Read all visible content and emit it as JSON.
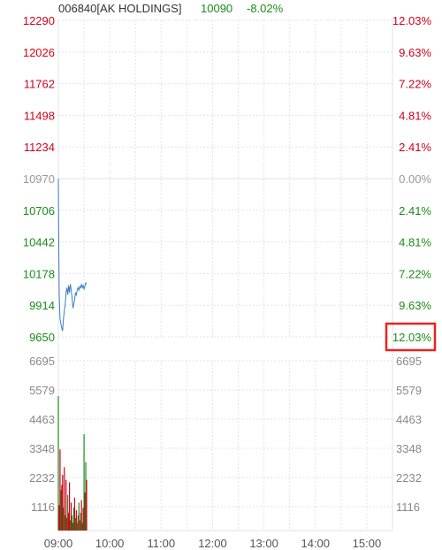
{
  "header": {
    "code_name": "006840[AK HOLDINGS]",
    "price": "10090",
    "change_pct": "-8.02%"
  },
  "colors": {
    "up": "#d0021b",
    "down": "#1a8c1a",
    "neutral": "#999999",
    "line": "#3a7fc1",
    "grid": "#e3e3e3",
    "highlight": "#e8231f",
    "title": "#333333"
  },
  "chart_data": {
    "type": "line",
    "title": "006840[AK HOLDINGS]",
    "price_axis": {
      "ticks": [
        {
          "value": 12290,
          "label": "12290",
          "pct": "12.03%",
          "color": "up"
        },
        {
          "value": 12026,
          "label": "12026",
          "pct": "9.63%",
          "color": "up"
        },
        {
          "value": 11762,
          "label": "11762",
          "pct": "7.22%",
          "color": "up"
        },
        {
          "value": 11498,
          "label": "11498",
          "pct": "4.81%",
          "color": "up"
        },
        {
          "value": 11234,
          "label": "11234",
          "pct": "2.41%",
          "color": "up"
        },
        {
          "value": 10970,
          "label": "10970",
          "pct": "0.00%",
          "color": "neutral"
        },
        {
          "value": 10706,
          "label": "10706",
          "pct": "2.41%",
          "color": "down"
        },
        {
          "value": 10442,
          "label": "10442",
          "pct": "4.81%",
          "color": "down"
        },
        {
          "value": 10178,
          "label": "10178",
          "pct": "7.22%",
          "color": "down"
        },
        {
          "value": 9914,
          "label": "9914",
          "pct": "9.63%",
          "color": "down"
        },
        {
          "value": 9650,
          "label": "9650",
          "pct": "12.03%",
          "color": "down"
        }
      ],
      "ylim": [
        9650,
        12290
      ],
      "highlighted_pct": "12.03%"
    },
    "volume_axis": {
      "ticks": [
        "6695",
        "5579",
        "4463",
        "3348",
        "2232",
        "1116"
      ],
      "ylim": [
        0,
        6695
      ]
    },
    "x_axis": {
      "ticks": [
        "09:00",
        "10:00",
        "11:00",
        "12:00",
        "13:00",
        "14:00",
        "15:00"
      ],
      "range_minutes": [
        0,
        390
      ]
    },
    "price_series": [
      {
        "t": 0,
        "v": 10970
      },
      {
        "t": 0.5,
        "v": 10420
      },
      {
        "t": 1,
        "v": 10000
      },
      {
        "t": 2,
        "v": 9800
      },
      {
        "t": 3,
        "v": 9760
      },
      {
        "t": 4,
        "v": 9720
      },
      {
        "t": 5,
        "v": 9700
      },
      {
        "t": 6,
        "v": 9800
      },
      {
        "t": 7,
        "v": 9870
      },
      {
        "t": 8,
        "v": 9920
      },
      {
        "t": 9,
        "v": 10020
      },
      {
        "t": 10,
        "v": 10060
      },
      {
        "t": 11,
        "v": 10000
      },
      {
        "t": 12,
        "v": 10080
      },
      {
        "t": 13,
        "v": 10020
      },
      {
        "t": 14,
        "v": 10090
      },
      {
        "t": 15,
        "v": 10040
      },
      {
        "t": 16,
        "v": 9980
      },
      {
        "t": 17,
        "v": 9890
      },
      {
        "t": 18,
        "v": 9920
      },
      {
        "t": 19,
        "v": 9960
      },
      {
        "t": 20,
        "v": 10020
      },
      {
        "t": 21,
        "v": 10000
      },
      {
        "t": 22,
        "v": 10040
      },
      {
        "t": 23,
        "v": 10060
      },
      {
        "t": 24,
        "v": 10040
      },
      {
        "t": 25,
        "v": 10070
      },
      {
        "t": 26,
        "v": 10060
      },
      {
        "t": 27,
        "v": 10090
      },
      {
        "t": 28,
        "v": 10060
      },
      {
        "t": 29,
        "v": 10080
      },
      {
        "t": 30,
        "v": 10050
      },
      {
        "t": 31,
        "v": 10070
      },
      {
        "t": 32,
        "v": 10100
      },
      {
        "t": 33,
        "v": 10090
      }
    ],
    "volume_series": [
      {
        "t": 0,
        "v": 5300,
        "dir": "down"
      },
      {
        "t": 1,
        "v": 1000,
        "dir": "up"
      },
      {
        "t": 2,
        "v": 3200,
        "dir": "up"
      },
      {
        "t": 3,
        "v": 1600,
        "dir": "down"
      },
      {
        "t": 4,
        "v": 1800,
        "dir": "up"
      },
      {
        "t": 5,
        "v": 2200,
        "dir": "up"
      },
      {
        "t": 6,
        "v": 900,
        "dir": "down"
      },
      {
        "t": 7,
        "v": 2500,
        "dir": "up"
      },
      {
        "t": 8,
        "v": 600,
        "dir": "down"
      },
      {
        "t": 9,
        "v": 2000,
        "dir": "up"
      },
      {
        "t": 10,
        "v": 500,
        "dir": "up"
      },
      {
        "t": 11,
        "v": 1400,
        "dir": "down"
      },
      {
        "t": 12,
        "v": 700,
        "dir": "up"
      },
      {
        "t": 13,
        "v": 1900,
        "dir": "up"
      },
      {
        "t": 14,
        "v": 400,
        "dir": "down"
      },
      {
        "t": 15,
        "v": 1100,
        "dir": "up"
      },
      {
        "t": 16,
        "v": 600,
        "dir": "down"
      },
      {
        "t": 17,
        "v": 300,
        "dir": "up"
      },
      {
        "t": 18,
        "v": 900,
        "dir": "down"
      },
      {
        "t": 19,
        "v": 1300,
        "dir": "up"
      },
      {
        "t": 20,
        "v": 500,
        "dir": "down"
      },
      {
        "t": 21,
        "v": 800,
        "dir": "up"
      },
      {
        "t": 22,
        "v": 300,
        "dir": "down"
      },
      {
        "t": 23,
        "v": 600,
        "dir": "up"
      },
      {
        "t": 24,
        "v": 1100,
        "dir": "down"
      },
      {
        "t": 25,
        "v": 400,
        "dir": "up"
      },
      {
        "t": 26,
        "v": 700,
        "dir": "down"
      },
      {
        "t": 27,
        "v": 1200,
        "dir": "up"
      },
      {
        "t": 28,
        "v": 300,
        "dir": "down"
      },
      {
        "t": 29,
        "v": 900,
        "dir": "up"
      },
      {
        "t": 30,
        "v": 3800,
        "dir": "down"
      },
      {
        "t": 31,
        "v": 1500,
        "dir": "up"
      },
      {
        "t": 32,
        "v": 2700,
        "dir": "down"
      },
      {
        "t": 33,
        "v": 2000,
        "dir": "up"
      }
    ]
  }
}
